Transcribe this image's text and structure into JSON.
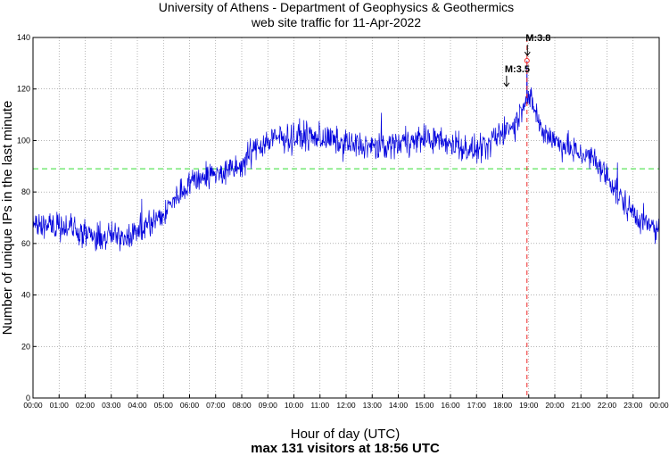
{
  "chart_data": {
    "type": "line",
    "title_line1": "University of Athens - Department of Geophysics & Geothermics",
    "title_line2": "web site traffic for 11-Apr-2022",
    "xlabel": "Hour of day (UTC)",
    "ylabel": "Number of unique IPs in the last minute",
    "footer": "max 131 visitors at 18:56 UTC",
    "xlim": [
      0,
      24
    ],
    "ylim": [
      0,
      140
    ],
    "x_ticks": [
      "00:00",
      "01:00",
      "02:00",
      "03:00",
      "04:00",
      "05:00",
      "06:00",
      "07:00",
      "08:00",
      "09:00",
      "10:00",
      "11:00",
      "12:00",
      "13:00",
      "14:00",
      "15:00",
      "16:00",
      "17:00",
      "18:00",
      "19:00",
      "20:00",
      "21:00",
      "22:00",
      "23:00",
      "00:00"
    ],
    "y_ticks": [
      "0",
      "20",
      "40",
      "60",
      "80",
      "100",
      "120",
      "140"
    ],
    "grid": true,
    "mean_line": {
      "value": 89,
      "color": "#33dd33",
      "style": "dashed"
    },
    "max_marker": {
      "hour": 18.933,
      "value": 131,
      "color": "#ee2222"
    },
    "annotations": [
      {
        "label": "M:3.5",
        "hour": 18.15,
        "value": 121
      },
      {
        "label": "M:3.8",
        "hour": 18.95,
        "value": 133
      }
    ],
    "series": [
      {
        "name": "unique IPs per minute",
        "color": "#0000dd",
        "x_hours": [
          0,
          0.5,
          1,
          1.5,
          2,
          2.5,
          3,
          3.5,
          4,
          4.5,
          5,
          5.5,
          6,
          6.5,
          7,
          7.5,
          8,
          8.5,
          9,
          9.5,
          10,
          10.5,
          11,
          11.5,
          12,
          12.5,
          13,
          13.5,
          14,
          14.5,
          15,
          15.5,
          16,
          16.5,
          17,
          17.5,
          18,
          18.5,
          18.93,
          19.2,
          19.5,
          20,
          20.5,
          21,
          21.5,
          22,
          22.5,
          23,
          23.5,
          24
        ],
        "trend": [
          67,
          68,
          67,
          66,
          63,
          62,
          63,
          63,
          65,
          68,
          71,
          78,
          84,
          86,
          87,
          88,
          90,
          97,
          100,
          101,
          101,
          102,
          101,
          100,
          99,
          98,
          97,
          98,
          99,
          100,
          101,
          100,
          99,
          97,
          96,
          98,
          104,
          106,
          118,
          113,
          104,
          100,
          97,
          95,
          92,
          86,
          78,
          72,
          67,
          65
        ],
        "noise_amplitude": 8
      }
    ]
  }
}
